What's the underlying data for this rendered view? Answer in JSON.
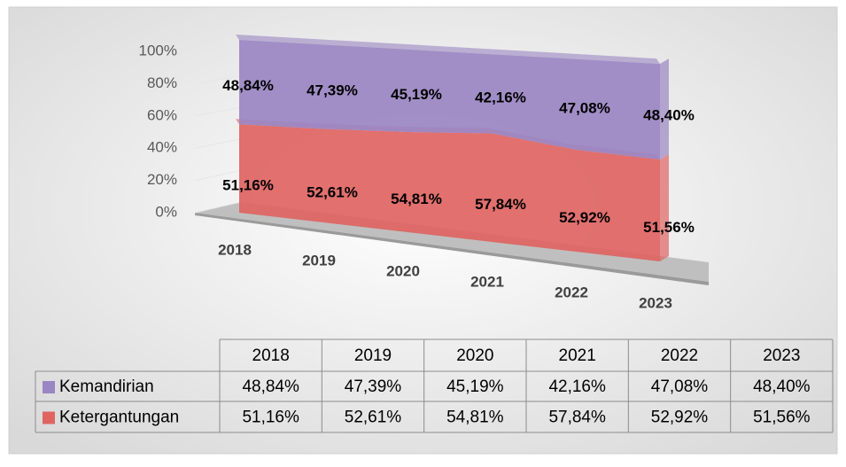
{
  "chart_data": {
    "type": "area",
    "stacked": true,
    "categories": [
      "2018",
      "2019",
      "2020",
      "2021",
      "2022",
      "2023"
    ],
    "series": [
      {
        "name": "Kemandirian",
        "color": "#9a86c2",
        "values": [
          48.84,
          47.39,
          45.19,
          42.16,
          47.08,
          48.4
        ],
        "value_labels": [
          "48,84%",
          "47,39%",
          "45,19%",
          "42,16%",
          "47,08%",
          "48,40%"
        ]
      },
      {
        "name": "Ketergantungan",
        "color": "#de6462",
        "values": [
          51.16,
          52.61,
          54.81,
          57.84,
          52.92,
          51.56
        ],
        "value_labels": [
          "51,16%",
          "52,61%",
          "54,81%",
          "57,84%",
          "52,92%",
          "51,56%"
        ]
      }
    ],
    "ylim": [
      0,
      100
    ],
    "yticks": [
      {
        "value": 0,
        "label": "0%"
      },
      {
        "value": 20,
        "label": "20%"
      },
      {
        "value": 40,
        "label": "40%"
      },
      {
        "value": 60,
        "label": "60%"
      },
      {
        "value": 80,
        "label": "80%"
      },
      {
        "value": 100,
        "label": "100%"
      }
    ],
    "grid": true,
    "data_table": true
  }
}
